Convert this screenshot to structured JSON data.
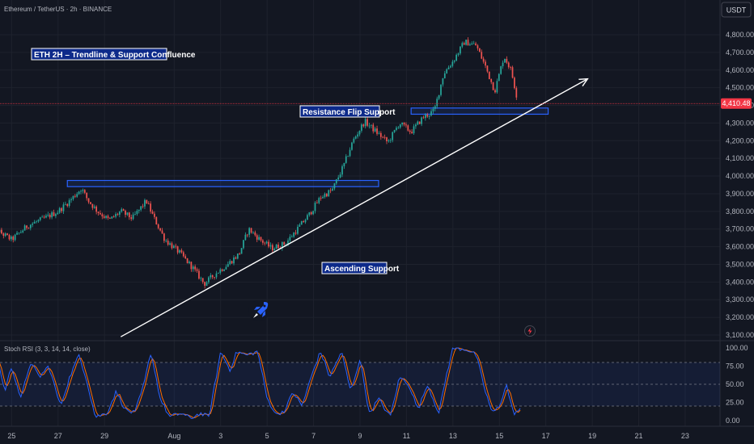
{
  "header": {
    "symbol_title": "Ethereum / TetherUS · 2h · BINANCE",
    "currency_button": "USDT"
  },
  "colors": {
    "background": "#131722",
    "up": "#26a69a",
    "down": "#ef5350",
    "zone": "#2962ff",
    "annotation_fill": "#0d2a8a",
    "stoch_k": "#2962ff",
    "stoch_d": "#ff6d00",
    "price_line": "#f23645"
  },
  "annotations": {
    "title": "ETH 2H – Trendline & Support Confluence",
    "resistance_flip": "Resistance Flip Support",
    "ascending_support": "Ascending Support"
  },
  "icons": {
    "rocket": "rocket-icon",
    "lightning": "lightning-icon"
  },
  "current_price": {
    "value": 4410.48,
    "label": "4,410.48"
  },
  "stoch_rsi": {
    "title": "Stoch RSI (3, 3, 14, 14, close)",
    "levels": [
      0,
      20,
      50,
      80,
      100
    ],
    "y_ticks": [
      "0.00",
      "25.00",
      "50.00",
      "75.00",
      "100.00"
    ]
  },
  "chart_data": {
    "type": "candlestick",
    "title": "",
    "xlabel": "",
    "ylabel": "",
    "ylim": [
      3100,
      4850
    ],
    "y_ticks": [
      "3,100.00",
      "3,200.00",
      "3,300.00",
      "3,400.00",
      "3,500.00",
      "3,600.00",
      "3,700.00",
      "3,800.00",
      "3,900.00",
      "4,000.00",
      "4,100.00",
      "4,200.00",
      "4,300.00",
      "4,400.00",
      "4,500.00",
      "4,600.00",
      "4,700.00",
      "4,800.00"
    ],
    "y_tick_values": [
      3100,
      3200,
      3300,
      3400,
      3500,
      3600,
      3700,
      3800,
      3900,
      4000,
      4100,
      4200,
      4300,
      4400,
      4500,
      4600,
      4700,
      4800
    ],
    "x_ticks": [
      "25",
      "27",
      "29",
      "Aug",
      "3",
      "5",
      "7",
      "9",
      "11",
      "13",
      "15",
      "17",
      "19",
      "21",
      "23"
    ],
    "x_tick_days": [
      -7,
      -5,
      -3,
      0,
      2,
      4,
      6,
      8,
      10,
      12,
      14,
      16,
      18,
      20,
      22
    ],
    "xlim_days": [
      -7.5,
      23.5
    ],
    "close_anchors": [
      {
        "day": -8.1,
        "price": 3600
      },
      {
        "day": -7.6,
        "price": 3690
      },
      {
        "day": -7.0,
        "price": 3640
      },
      {
        "day": -6.3,
        "price": 3720
      },
      {
        "day": -5.6,
        "price": 3760
      },
      {
        "day": -5.0,
        "price": 3800
      },
      {
        "day": -4.5,
        "price": 3860
      },
      {
        "day": -4.0,
        "price": 3930
      },
      {
        "day": -3.7,
        "price": 3860
      },
      {
        "day": -3.3,
        "price": 3800
      },
      {
        "day": -2.8,
        "price": 3750
      },
      {
        "day": -2.3,
        "price": 3800
      },
      {
        "day": -1.8,
        "price": 3760
      },
      {
        "day": -1.2,
        "price": 3860
      },
      {
        "day": -0.9,
        "price": 3770
      },
      {
        "day": -0.4,
        "price": 3640
      },
      {
        "day": 0.2,
        "price": 3570
      },
      {
        "day": 0.8,
        "price": 3480
      },
      {
        "day": 1.3,
        "price": 3390
      },
      {
        "day": 1.8,
        "price": 3450
      },
      {
        "day": 2.3,
        "price": 3500
      },
      {
        "day": 2.8,
        "price": 3560
      },
      {
        "day": 3.2,
        "price": 3700
      },
      {
        "day": 3.7,
        "price": 3640
      },
      {
        "day": 4.2,
        "price": 3590
      },
      {
        "day": 4.8,
        "price": 3620
      },
      {
        "day": 5.3,
        "price": 3700
      },
      {
        "day": 5.8,
        "price": 3780
      },
      {
        "day": 6.3,
        "price": 3880
      },
      {
        "day": 6.8,
        "price": 3920
      },
      {
        "day": 7.3,
        "price": 4060
      },
      {
        "day": 7.7,
        "price": 4200
      },
      {
        "day": 8.2,
        "price": 4310
      },
      {
        "day": 8.7,
        "price": 4250
      },
      {
        "day": 9.2,
        "price": 4190
      },
      {
        "day": 9.7,
        "price": 4300
      },
      {
        "day": 10.2,
        "price": 4250
      },
      {
        "day": 10.7,
        "price": 4330
      },
      {
        "day": 11.2,
        "price": 4370
      },
      {
        "day": 11.6,
        "price": 4580
      },
      {
        "day": 12.0,
        "price": 4650
      },
      {
        "day": 12.5,
        "price": 4760
      },
      {
        "day": 13.0,
        "price": 4740
      },
      {
        "day": 13.4,
        "price": 4620
      },
      {
        "day": 13.8,
        "price": 4480
      },
      {
        "day": 14.2,
        "price": 4680
      },
      {
        "day": 14.5,
        "price": 4600
      },
      {
        "day": 14.8,
        "price": 4420
      }
    ],
    "zones": [
      {
        "name": "upper-resistance-zone",
        "day_start": 10.2,
        "day_end": 16.1,
        "price_low": 4350,
        "price_high": 4385
      },
      {
        "name": "lower-resistance-zone",
        "day_start": -4.6,
        "day_end": 8.8,
        "price_low": 3940,
        "price_high": 3975
      }
    ],
    "trendline": {
      "start": {
        "day": -2.3,
        "price": 3090
      },
      "end": {
        "day": 17.8,
        "price": 4550
      }
    },
    "stoch_anchors": [
      {
        "day": -8.1,
        "k": 60
      },
      {
        "day": -7.6,
        "k": 85
      },
      {
        "day": -7.3,
        "k": 40
      },
      {
        "day": -7.0,
        "k": 75
      },
      {
        "day": -6.6,
        "k": 30
      },
      {
        "day": -6.2,
        "k": 80
      },
      {
        "day": -5.8,
        "k": 60
      },
      {
        "day": -5.4,
        "k": 75
      },
      {
        "day": -4.9,
        "k": 20
      },
      {
        "day": -4.5,
        "k": 60
      },
      {
        "day": -4.1,
        "k": 90
      },
      {
        "day": -3.8,
        "k": 60
      },
      {
        "day": -3.4,
        "k": 5
      },
      {
        "day": -2.9,
        "k": 10
      },
      {
        "day": -2.5,
        "k": 40
      },
      {
        "day": -2.1,
        "k": 15
      },
      {
        "day": -1.7,
        "k": 10
      },
      {
        "day": -1.3,
        "k": 50
      },
      {
        "day": -1.0,
        "k": 95
      },
      {
        "day": -0.6,
        "k": 30
      },
      {
        "day": -0.2,
        "k": 5
      },
      {
        "day": 0.3,
        "k": 10
      },
      {
        "day": 0.7,
        "k": 3
      },
      {
        "day": 1.1,
        "k": 10
      },
      {
        "day": 1.5,
        "k": 5
      },
      {
        "day": 2.0,
        "k": 95
      },
      {
        "day": 2.4,
        "k": 70
      },
      {
        "day": 2.7,
        "k": 95
      },
      {
        "day": 3.1,
        "k": 90
      },
      {
        "day": 3.6,
        "k": 95
      },
      {
        "day": 4.0,
        "k": 30
      },
      {
        "day": 4.4,
        "k": 8
      },
      {
        "day": 4.8,
        "k": 15
      },
      {
        "day": 5.1,
        "k": 40
      },
      {
        "day": 5.5,
        "k": 20
      },
      {
        "day": 6.0,
        "k": 70
      },
      {
        "day": 6.3,
        "k": 95
      },
      {
        "day": 6.7,
        "k": 60
      },
      {
        "day": 7.2,
        "k": 95
      },
      {
        "day": 7.6,
        "k": 40
      },
      {
        "day": 8.0,
        "k": 85
      },
      {
        "day": 8.4,
        "k": 10
      },
      {
        "day": 8.8,
        "k": 30
      },
      {
        "day": 9.3,
        "k": 5
      },
      {
        "day": 9.7,
        "k": 60
      },
      {
        "day": 10.1,
        "k": 50
      },
      {
        "day": 10.5,
        "k": 15
      },
      {
        "day": 10.9,
        "k": 50
      },
      {
        "day": 11.4,
        "k": 10
      },
      {
        "day": 11.7,
        "k": 60
      },
      {
        "day": 12.0,
        "k": 100
      },
      {
        "day": 12.6,
        "k": 98
      },
      {
        "day": 13.0,
        "k": 90
      },
      {
        "day": 13.4,
        "k": 40
      },
      {
        "day": 13.7,
        "k": 10
      },
      {
        "day": 14.0,
        "k": 20
      },
      {
        "day": 14.3,
        "k": 50
      },
      {
        "day": 14.6,
        "k": 10
      },
      {
        "day": 14.9,
        "k": 15
      }
    ]
  }
}
